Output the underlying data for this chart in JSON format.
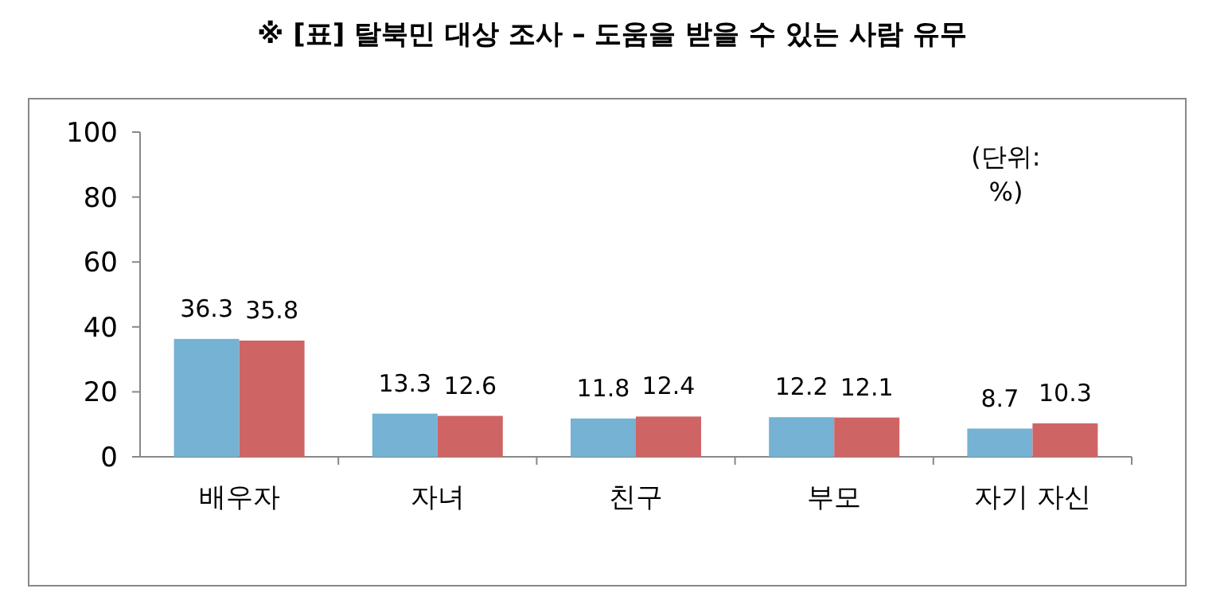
{
  "chart_data": {
    "type": "bar",
    "title": "※ [표] 탈북민 대상 조사 – 도움을 받을 수 있는 사람 유무",
    "categories": [
      "배우자",
      "자녀",
      "친구",
      "부모",
      "자기 자신"
    ],
    "series": [
      {
        "color": "#75b2d3",
        "values": [
          36.3,
          13.3,
          11.8,
          12.2,
          8.7
        ]
      },
      {
        "color": "#cf6464",
        "values": [
          35.8,
          12.6,
          12.4,
          12.1,
          10.3
        ]
      }
    ],
    "ylim": [
      0,
      100
    ],
    "yticks": [
      0,
      20,
      40,
      60,
      80,
      100
    ],
    "grid": false,
    "data_labels": true,
    "annotations": [
      "(단위: %)"
    ]
  }
}
